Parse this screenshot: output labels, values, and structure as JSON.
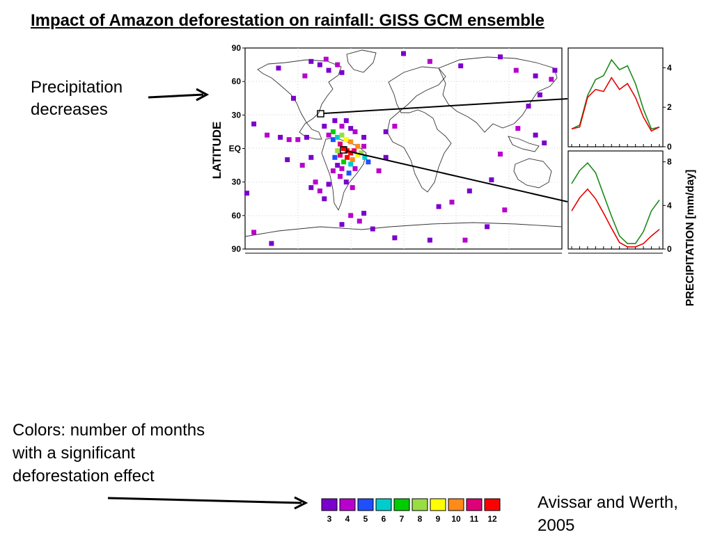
{
  "title": "Impact of Amazon deforestation on rainfall: GISS GCM ensemble",
  "annotations": {
    "precip_note_line1": "Precipitation",
    "precip_note_line2": "decreases",
    "colors_note": "Colors:  number of months with a significant deforestation effect",
    "citation": "Avissar and Werth, 2005"
  },
  "colors": {
    "control": "#1a8a1a",
    "deforested": "#e60000",
    "legend": [
      "#7a00cc",
      "#b800cc",
      "#1f4fff",
      "#00cccc",
      "#00cc00",
      "#99dd44",
      "#ffff00",
      "#ff8a1a",
      "#dd0077",
      "#ff0000"
    ]
  },
  "chart_data": [
    {
      "type": "heatmap",
      "title": "",
      "ylabel": "LATITUDE",
      "yticks": [
        "90",
        "60",
        "30",
        "EQ",
        "30",
        "60",
        "90"
      ],
      "ylim": [
        -90,
        90
      ],
      "xlim": [
        -180,
        180
      ],
      "value_meaning": "number of months with a significant deforestation effect",
      "cells": [
        {
          "lon": -125,
          "lat": 45,
          "value": 3
        },
        {
          "lon": -95,
          "lat": 75,
          "value": 3
        },
        {
          "lon": -88,
          "lat": 80,
          "value": 4
        },
        {
          "lon": -85,
          "lat": 70,
          "value": 3
        },
        {
          "lon": -75,
          "lat": 75,
          "value": 4
        },
        {
          "lon": -70,
          "lat": 68,
          "value": 3
        },
        {
          "lon": -105,
          "lat": 78,
          "value": 3
        },
        {
          "lon": -142,
          "lat": 72,
          "value": 3
        },
        {
          "lon": -112,
          "lat": 65,
          "value": 4
        },
        {
          "lon": 0,
          "lat": 85,
          "value": 3
        },
        {
          "lon": 30,
          "lat": 78,
          "value": 4
        },
        {
          "lon": 65,
          "lat": 74,
          "value": 3
        },
        {
          "lon": 110,
          "lat": 82,
          "value": 3
        },
        {
          "lon": 128,
          "lat": 70,
          "value": 4
        },
        {
          "lon": 150,
          "lat": 65,
          "value": 3
        },
        {
          "lon": 172,
          "lat": 70,
          "value": 3
        },
        {
          "lon": 168,
          "lat": 62,
          "value": 4
        },
        {
          "lon": 155,
          "lat": 48,
          "value": 3
        },
        {
          "lon": 142,
          "lat": 38,
          "value": 3
        },
        {
          "lon": 130,
          "lat": 18,
          "value": 4
        },
        {
          "lon": 150,
          "lat": 12,
          "value": 3
        },
        {
          "lon": 160,
          "lat": 5,
          "value": 3
        },
        {
          "lon": 110,
          "lat": -5,
          "value": 4
        },
        {
          "lon": 100,
          "lat": -28,
          "value": 3
        },
        {
          "lon": 115,
          "lat": -55,
          "value": 4
        },
        {
          "lon": 95,
          "lat": -70,
          "value": 3
        },
        {
          "lon": 75,
          "lat": -38,
          "value": 3
        },
        {
          "lon": 55,
          "lat": -48,
          "value": 4
        },
        {
          "lon": 40,
          "lat": -52,
          "value": 3
        },
        {
          "lon": 30,
          "lat": -82,
          "value": 3
        },
        {
          "lon": 70,
          "lat": -82,
          "value": 4
        },
        {
          "lon": -10,
          "lat": -80,
          "value": 3
        },
        {
          "lon": -150,
          "lat": -85,
          "value": 3
        },
        {
          "lon": -170,
          "lat": -75,
          "value": 4
        },
        {
          "lon": -178,
          "lat": -40,
          "value": 3
        },
        {
          "lon": -170,
          "lat": 22,
          "value": 3
        },
        {
          "lon": -155,
          "lat": 12,
          "value": 4
        },
        {
          "lon": -140,
          "lat": 10,
          "value": 3
        },
        {
          "lon": -130,
          "lat": 8,
          "value": 4
        },
        {
          "lon": -120,
          "lat": 8,
          "value": 4
        },
        {
          "lon": -110,
          "lat": 10,
          "value": 3
        },
        {
          "lon": -132,
          "lat": -10,
          "value": 3
        },
        {
          "lon": -115,
          "lat": -15,
          "value": 4
        },
        {
          "lon": -105,
          "lat": -8,
          "value": 3
        },
        {
          "lon": -100,
          "lat": -30,
          "value": 4
        },
        {
          "lon": -105,
          "lat": -35,
          "value": 3
        },
        {
          "lon": -95,
          "lat": -38,
          "value": 4
        },
        {
          "lon": -85,
          "lat": -32,
          "value": 3
        },
        {
          "lon": -90,
          "lat": -45,
          "value": 3
        },
        {
          "lon": -60,
          "lat": -60,
          "value": 4
        },
        {
          "lon": -50,
          "lat": -65,
          "value": 4
        },
        {
          "lon": -45,
          "lat": -58,
          "value": 3
        },
        {
          "lon": -35,
          "lat": -72,
          "value": 3
        },
        {
          "lon": -70,
          "lat": -68,
          "value": 3
        },
        {
          "lon": -20,
          "lat": -8,
          "value": 3
        },
        {
          "lon": -28,
          "lat": -20,
          "value": 4
        },
        {
          "lon": -20,
          "lat": 15,
          "value": 3
        },
        {
          "lon": -10,
          "lat": 20,
          "value": 4
        },
        {
          "lon": -85,
          "lat": 12,
          "value": 4
        },
        {
          "lon": -80,
          "lat": 8,
          "value": 5
        },
        {
          "lon": -75,
          "lat": 10,
          "value": 6
        },
        {
          "lon": -80,
          "lat": 15,
          "value": 7
        },
        {
          "lon": -70,
          "lat": 12,
          "value": 8
        },
        {
          "lon": -65,
          "lat": 8,
          "value": 9
        },
        {
          "lon": -60,
          "lat": 6,
          "value": 10
        },
        {
          "lon": -72,
          "lat": 4,
          "value": 11
        },
        {
          "lon": -68,
          "lat": 0,
          "value": 12
        },
        {
          "lon": -64,
          "lat": -2,
          "value": 12
        },
        {
          "lon": -60,
          "lat": -4,
          "value": 12
        },
        {
          "lon": -56,
          "lat": -2,
          "value": 11
        },
        {
          "lon": -52,
          "lat": 2,
          "value": 10
        },
        {
          "lon": -72,
          "lat": -6,
          "value": 11
        },
        {
          "lon": -64,
          "lat": -8,
          "value": 12
        },
        {
          "lon": -58,
          "lat": -10,
          "value": 10
        },
        {
          "lon": -52,
          "lat": -6,
          "value": 9
        },
        {
          "lon": -48,
          "lat": -4,
          "value": 8
        },
        {
          "lon": -68,
          "lat": -12,
          "value": 7
        },
        {
          "lon": -60,
          "lat": -14,
          "value": 6
        },
        {
          "lon": -75,
          "lat": -2,
          "value": 8
        },
        {
          "lon": -78,
          "lat": -8,
          "value": 5
        },
        {
          "lon": -44,
          "lat": -8,
          "value": 6
        },
        {
          "lon": -45,
          "lat": 2,
          "value": 4
        },
        {
          "lon": -40,
          "lat": -12,
          "value": 5
        },
        {
          "lon": -55,
          "lat": -18,
          "value": 4
        },
        {
          "lon": -62,
          "lat": -22,
          "value": 5
        },
        {
          "lon": -70,
          "lat": -18,
          "value": 4
        },
        {
          "lon": -75,
          "lat": -15,
          "value": 3
        },
        {
          "lon": -80,
          "lat": -20,
          "value": 4
        },
        {
          "lon": -65,
          "lat": -30,
          "value": 3
        },
        {
          "lon": -58,
          "lat": -35,
          "value": 4
        },
        {
          "lon": -55,
          "lat": 15,
          "value": 4
        },
        {
          "lon": -45,
          "lat": 10,
          "value": 3
        },
        {
          "lon": -60,
          "lat": 18,
          "value": 3
        },
        {
          "lon": -70,
          "lat": 20,
          "value": 4
        },
        {
          "lon": -78,
          "lat": 25,
          "value": 3
        },
        {
          "lon": -65,
          "lat": 25,
          "value": 3
        },
        {
          "lon": -90,
          "lat": 20,
          "value": 3
        },
        {
          "lon": -72,
          "lat": -25,
          "value": 4
        }
      ],
      "markers": [
        {
          "name": "North America box",
          "lon": -75,
          "lat": 30
        },
        {
          "name": "Amazon box",
          "lon": -62,
          "lat": -2
        }
      ]
    },
    {
      "type": "line",
      "title": "",
      "x": [
        1,
        2,
        3,
        4,
        5,
        6,
        7,
        8,
        9,
        10,
        11,
        12
      ],
      "ylim": [
        0,
        5
      ],
      "yticks": [
        "0",
        "2",
        "4"
      ],
      "series": [
        {
          "values": [
            0.9,
            1.1,
            2.6,
            3.4,
            3.6,
            4.4,
            3.9,
            4.1,
            3.2,
            1.9,
            0.9,
            1.0
          ]
        },
        {
          "values": [
            0.9,
            1.0,
            2.5,
            2.9,
            2.8,
            3.5,
            2.9,
            3.2,
            2.5,
            1.5,
            0.8,
            1.0
          ]
        }
      ]
    },
    {
      "type": "line",
      "title": "",
      "x": [
        1,
        2,
        3,
        4,
        5,
        6,
        7,
        8,
        9,
        10,
        11,
        12
      ],
      "ylim": [
        0,
        9
      ],
      "yticks": [
        "0",
        "4",
        "8"
      ],
      "series": [
        {
          "values": [
            6.0,
            7.2,
            7.9,
            7.0,
            5.0,
            3.0,
            1.2,
            0.5,
            0.5,
            1.6,
            3.5,
            4.5
          ]
        },
        {
          "values": [
            3.5,
            4.7,
            5.5,
            4.6,
            3.3,
            1.9,
            0.6,
            0.2,
            0.2,
            0.5,
            1.2,
            1.8
          ]
        }
      ]
    },
    {
      "type": "bar",
      "title": "",
      "categories": [
        "3",
        "4",
        "5",
        "6",
        "7",
        "8",
        "9",
        "10",
        "11",
        "12"
      ]
    }
  ],
  "axis_labels": {
    "right": "PRECIPITATION [mm/day]"
  }
}
